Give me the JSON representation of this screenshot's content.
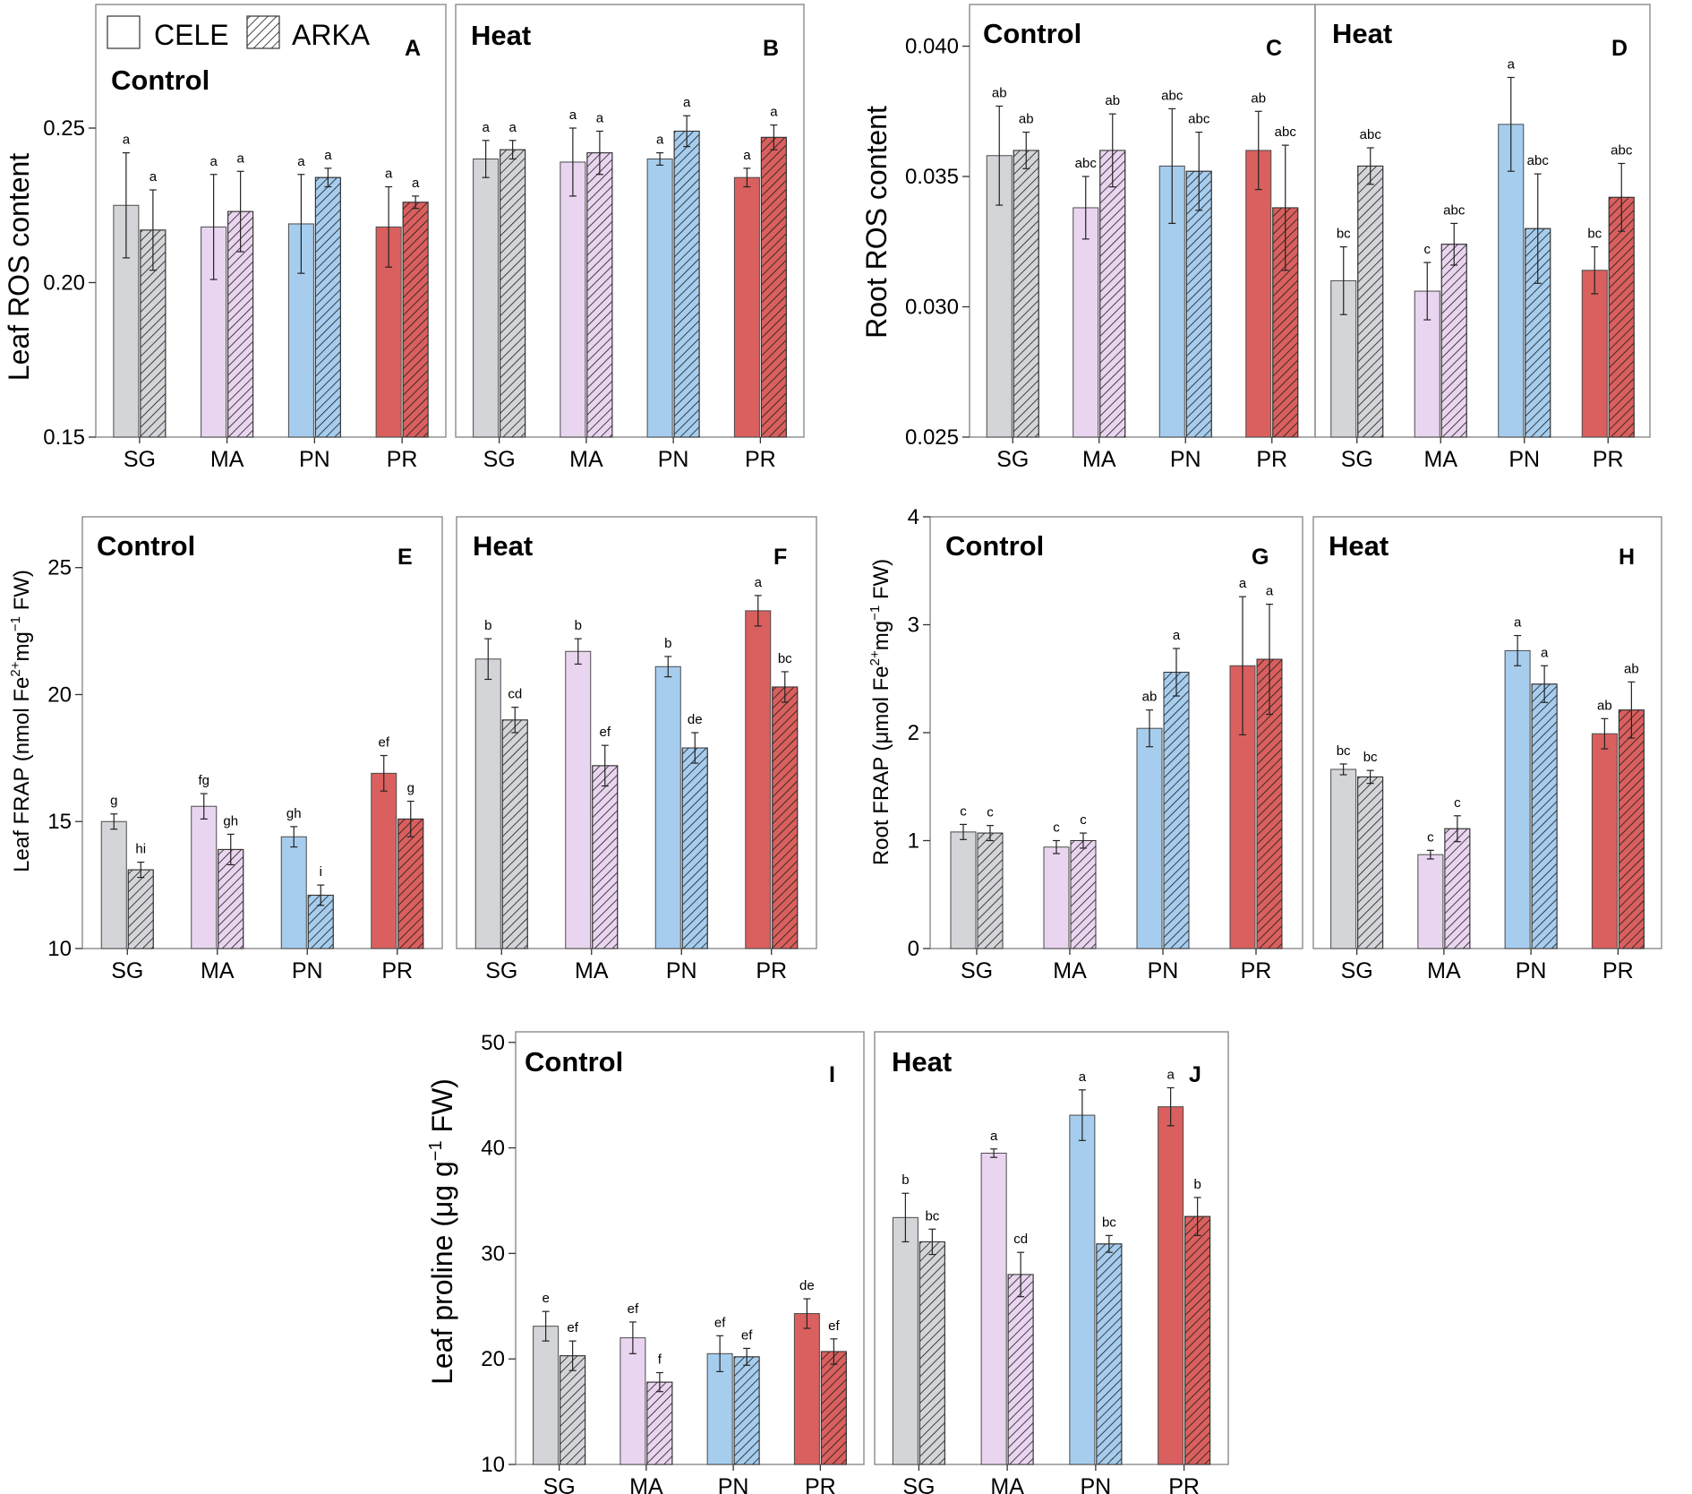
{
  "colors": {
    "SG": "#d3d5d9",
    "MA": "#ead5f0",
    "PN": "#a6cdee",
    "PR": "#d9605e",
    "axis": "#8c8c8c"
  },
  "legend": {
    "cele": "CELE",
    "arka": "ARKA"
  },
  "y_labels": {
    "leaf_ros": "Leaf ROS content",
    "root_ros": "Root ROS content",
    "leaf_frap": "Leaf FRAP (nmol Fe2+mg−1 FW)",
    "root_frap": "Root FRAP (μmol Fe2+mg−1 FW)",
    "leaf_proline": "Leaf proline (μg g−1 FW)"
  },
  "chart_data": [
    {
      "type": "bar",
      "panel": "A",
      "title": "Control",
      "ylabel": "Leaf ROS content",
      "ylim": [
        0.15,
        0.29
      ],
      "yticks": [
        "0.15",
        "0.20",
        "0.25"
      ],
      "categories": [
        "SG",
        "MA",
        "PN",
        "PR"
      ],
      "series": [
        {
          "name": "CELE",
          "values": [
            0.225,
            0.218,
            0.219,
            0.218
          ],
          "errors": [
            0.017,
            0.017,
            0.016,
            0.013
          ],
          "labels": [
            "a",
            "a",
            "a",
            "a"
          ]
        },
        {
          "name": "ARKA",
          "values": [
            0.217,
            0.223,
            0.234,
            0.226
          ],
          "errors": [
            0.013,
            0.013,
            0.003,
            0.002
          ],
          "labels": [
            "a",
            "a",
            "a",
            "a"
          ]
        }
      ]
    },
    {
      "type": "bar",
      "panel": "B",
      "title": "Heat",
      "ylabel": "",
      "ylim": [
        0.15,
        0.29
      ],
      "yticks": [],
      "categories": [
        "SG",
        "MA",
        "PN",
        "PR"
      ],
      "series": [
        {
          "name": "CELE",
          "values": [
            0.24,
            0.239,
            0.24,
            0.234
          ],
          "errors": [
            0.006,
            0.011,
            0.002,
            0.003
          ],
          "labels": [
            "a",
            "a",
            "a",
            "a"
          ]
        },
        {
          "name": "ARKA",
          "values": [
            0.243,
            0.242,
            0.249,
            0.247
          ],
          "errors": [
            0.003,
            0.007,
            0.005,
            0.004
          ],
          "labels": [
            "a",
            "a",
            "a",
            "a"
          ]
        }
      ]
    },
    {
      "type": "bar",
      "panel": "C",
      "title": "Control",
      "ylabel": "Root ROS content",
      "ylim": [
        0.025,
        0.0416
      ],
      "yticks": [
        "0.025",
        "0.030",
        "0.035",
        "0.040"
      ],
      "categories": [
        "SG",
        "MA",
        "PN",
        "PR"
      ],
      "series": [
        {
          "name": "CELE",
          "values": [
            0.0358,
            0.0338,
            0.0354,
            0.036
          ],
          "errors": [
            0.0019,
            0.0012,
            0.0022,
            0.0015
          ],
          "labels": [
            "ab",
            "abc",
            "abc",
            "ab"
          ]
        },
        {
          "name": "ARKA",
          "values": [
            0.036,
            0.036,
            0.0352,
            0.0338
          ],
          "errors": [
            0.0007,
            0.0014,
            0.0015,
            0.0024
          ],
          "labels": [
            "ab",
            "ab",
            "abc",
            "abc"
          ]
        }
      ]
    },
    {
      "type": "bar",
      "panel": "D",
      "title": "Heat",
      "ylabel": "",
      "ylim": [
        0.025,
        0.0416
      ],
      "yticks": [],
      "categories": [
        "SG",
        "MA",
        "PN",
        "PR"
      ],
      "series": [
        {
          "name": "CELE",
          "values": [
            0.031,
            0.0306,
            0.037,
            0.0314
          ],
          "errors": [
            0.0013,
            0.0011,
            0.0018,
            0.0009
          ],
          "labels": [
            "bc",
            "c",
            "a",
            "bc"
          ]
        },
        {
          "name": "ARKA",
          "values": [
            0.0354,
            0.0324,
            0.033,
            0.0342
          ],
          "errors": [
            0.0007,
            0.0008,
            0.0021,
            0.0013
          ],
          "labels": [
            "abc",
            "abc",
            "abc",
            "abc"
          ]
        }
      ]
    },
    {
      "type": "bar",
      "panel": "E",
      "title": "Control",
      "ylabel": "Leaf FRAP (nmol Fe2+mg-1 FW)",
      "ylim": [
        10,
        27
      ],
      "yticks": [
        "10",
        "15",
        "20",
        "25"
      ],
      "categories": [
        "SG",
        "MA",
        "PN",
        "PR"
      ],
      "series": [
        {
          "name": "CELE",
          "values": [
            15.0,
            15.6,
            14.4,
            16.9
          ],
          "errors": [
            0.3,
            0.5,
            0.4,
            0.7
          ],
          "labels": [
            "g",
            "fg",
            "gh",
            "ef"
          ]
        },
        {
          "name": "ARKA",
          "values": [
            13.1,
            13.9,
            12.1,
            15.1
          ],
          "errors": [
            0.3,
            0.6,
            0.4,
            0.7
          ],
          "labels": [
            "hi",
            "gh",
            "i",
            "g"
          ]
        }
      ]
    },
    {
      "type": "bar",
      "panel": "F",
      "title": "Heat",
      "ylabel": "",
      "ylim": [
        10,
        27
      ],
      "yticks": [],
      "categories": [
        "SG",
        "MA",
        "PN",
        "PR"
      ],
      "series": [
        {
          "name": "CELE",
          "values": [
            21.4,
            21.7,
            21.1,
            23.3
          ],
          "errors": [
            0.8,
            0.5,
            0.4,
            0.6
          ],
          "labels": [
            "b",
            "b",
            "b",
            "a"
          ]
        },
        {
          "name": "ARKA",
          "values": [
            19.0,
            17.2,
            17.9,
            20.3
          ],
          "errors": [
            0.5,
            0.8,
            0.6,
            0.6
          ],
          "labels": [
            "cd",
            "ef",
            "de",
            "bc"
          ]
        }
      ]
    },
    {
      "type": "bar",
      "panel": "G",
      "title": "Control",
      "ylabel": "Root FRAP (μmol Fe2+mg-1 FW)",
      "ylim": [
        0,
        4
      ],
      "yticks": [
        "0",
        "1",
        "2",
        "3",
        "4"
      ],
      "categories": [
        "SG",
        "MA",
        "PN",
        "PR"
      ],
      "series": [
        {
          "name": "CELE",
          "values": [
            1.08,
            0.94,
            2.04,
            2.62
          ],
          "errors": [
            0.07,
            0.06,
            0.17,
            0.64
          ],
          "labels": [
            "c",
            "c",
            "ab",
            "a"
          ]
        },
        {
          "name": "ARKA",
          "values": [
            1.07,
            1.0,
            2.56,
            2.68
          ],
          "errors": [
            0.07,
            0.07,
            0.22,
            0.51
          ],
          "labels": [
            "c",
            "c",
            "a",
            "a"
          ]
        }
      ]
    },
    {
      "type": "bar",
      "panel": "H",
      "title": "Heat",
      "ylabel": "",
      "ylim": [
        0,
        4
      ],
      "yticks": [],
      "categories": [
        "SG",
        "MA",
        "PN",
        "PR"
      ],
      "series": [
        {
          "name": "CELE",
          "values": [
            1.66,
            0.87,
            2.76,
            1.99
          ],
          "errors": [
            0.05,
            0.04,
            0.14,
            0.14
          ],
          "labels": [
            "bc",
            "c",
            "a",
            "ab"
          ]
        },
        {
          "name": "ARKA",
          "values": [
            1.59,
            1.11,
            2.45,
            2.21
          ],
          "errors": [
            0.06,
            0.12,
            0.17,
            0.26
          ],
          "labels": [
            "bc",
            "c",
            "a",
            "ab"
          ]
        }
      ]
    },
    {
      "type": "bar",
      "panel": "I",
      "title": "Control",
      "ylabel": "Leaf proline (μg g-1 FW)",
      "ylim": [
        10,
        51
      ],
      "yticks": [
        "10",
        "20",
        "30",
        "40",
        "50"
      ],
      "categories": [
        "SG",
        "MA",
        "PN",
        "PR"
      ],
      "series": [
        {
          "name": "CELE",
          "values": [
            23.1,
            22.0,
            20.5,
            24.3
          ],
          "errors": [
            1.4,
            1.5,
            1.7,
            1.4
          ],
          "labels": [
            "e",
            "ef",
            "ef",
            "de"
          ]
        },
        {
          "name": "ARKA",
          "values": [
            20.3,
            17.8,
            20.2,
            20.7
          ],
          "errors": [
            1.4,
            0.9,
            0.8,
            1.2
          ],
          "labels": [
            "ef",
            "f",
            "ef",
            "ef"
          ]
        }
      ]
    },
    {
      "type": "bar",
      "panel": "J",
      "title": "Heat",
      "ylabel": "",
      "ylim": [
        10,
        51
      ],
      "yticks": [],
      "categories": [
        "SG",
        "MA",
        "PN",
        "PR"
      ],
      "series": [
        {
          "name": "CELE",
          "values": [
            33.4,
            39.5,
            43.1,
            43.9
          ],
          "errors": [
            2.3,
            0.4,
            2.4,
            1.8
          ],
          "labels": [
            "b",
            "a",
            "a",
            "a"
          ]
        },
        {
          "name": "ARKA",
          "values": [
            31.1,
            28.0,
            30.9,
            33.5
          ],
          "errors": [
            1.2,
            2.1,
            0.8,
            1.8
          ],
          "labels": [
            "bc",
            "cd",
            "bc",
            "b"
          ]
        }
      ]
    }
  ]
}
